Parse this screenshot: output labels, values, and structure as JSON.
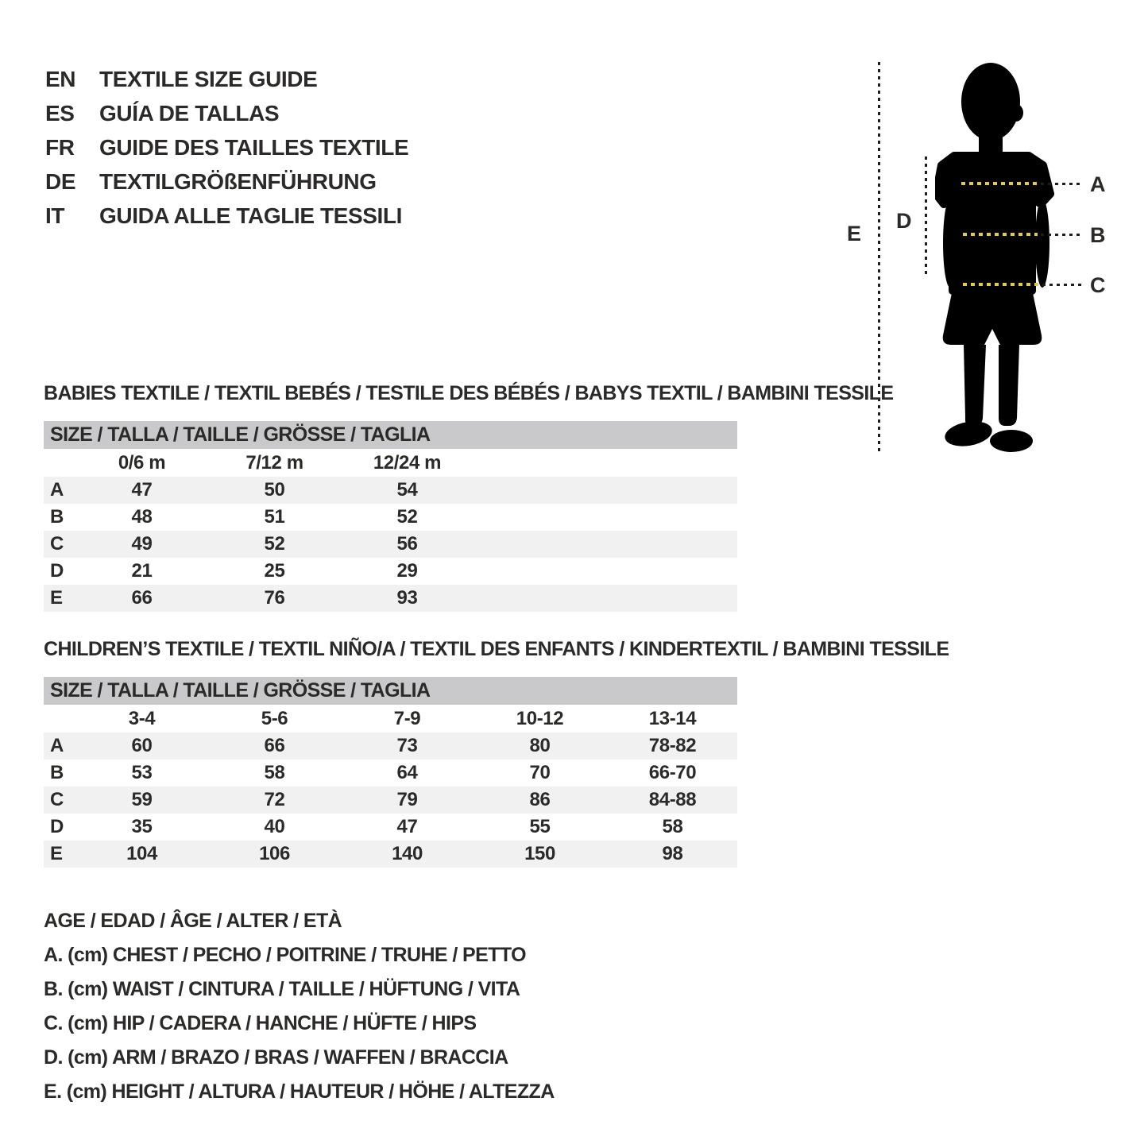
{
  "header": {
    "languages": [
      {
        "code": "EN",
        "label": "TEXTILE SIZE GUIDE"
      },
      {
        "code": "ES",
        "label": "GUÍA DE TALLAS"
      },
      {
        "code": "FR",
        "label": "GUIDE DES TAILLES TEXTILE"
      },
      {
        "code": "DE",
        "label": "TEXTILGRÖßENFÜHRUNG"
      },
      {
        "code": "IT",
        "label": "GUIDA ALLE TAGLIE TESSILI"
      }
    ]
  },
  "figure": {
    "labels": {
      "a": "A",
      "b": "B",
      "c": "C",
      "d": "D",
      "e": "E"
    }
  },
  "babies": {
    "title": "BABIES TEXTILE / TEXTIL BEBÉS / TESTILE DES BÉBÉS / BABYS TEXTIL / BAMBINI TESSILE",
    "size_header": "SIZE / TALLA / TAILLE / GRÖSSE / TAGLIA",
    "columns": [
      "0/6 m",
      "7/12 m",
      "12/24 m"
    ],
    "rows": [
      {
        "label": "A",
        "values": [
          "47",
          "50",
          "54"
        ]
      },
      {
        "label": "B",
        "values": [
          "48",
          "51",
          "52"
        ]
      },
      {
        "label": "C",
        "values": [
          "49",
          "52",
          "56"
        ]
      },
      {
        "label": "D",
        "values": [
          "21",
          "25",
          "29"
        ]
      },
      {
        "label": "E",
        "values": [
          "66",
          "76",
          "93"
        ]
      }
    ]
  },
  "children": {
    "title": "CHILDREN’S TEXTILE / TEXTIL NIÑO/A / TEXTIL DES ENFANTS / KINDERTEXTIL / BAMBINI TESSILE",
    "size_header": "SIZE / TALLA / TAILLE / GRÖSSE / TAGLIA",
    "columns": [
      "3-4",
      "5-6",
      "7-9",
      "10-12",
      "13-14"
    ],
    "rows": [
      {
        "label": "A",
        "values": [
          "60",
          "66",
          "73",
          "80",
          "78-82"
        ]
      },
      {
        "label": "B",
        "values": [
          "53",
          "58",
          "64",
          "70",
          "66-70"
        ]
      },
      {
        "label": "C",
        "values": [
          "59",
          "72",
          "79",
          "86",
          "84-88"
        ]
      },
      {
        "label": "D",
        "values": [
          "35",
          "40",
          "47",
          "55",
          "58"
        ]
      },
      {
        "label": "E",
        "values": [
          "104",
          "106",
          "140",
          "150",
          "98"
        ]
      }
    ]
  },
  "legend": {
    "lines": [
      "AGE / EDAD / ÂGE / ALTER / ETÀ",
      "A. (cm) CHEST / PECHO / POITRINE / TRUHE / PETTO",
      "B. (cm) WAIST / CINTURA / TAILLE / HÜFTUNG / VITA",
      "C. (cm) HIP / CADERA / HANCHE / HÜFTE / HIPS",
      "D. (cm) ARM / BRAZO / BRAS / WAFFEN / BRACCIA",
      "E. (cm) HEIGHT / ALTURA / HAUTEUR / HÖHE / ALTEZZA"
    ]
  },
  "colors": {
    "text": "#2b2a28",
    "bar_gray": "#c9c9cb",
    "stripe_gray": "#f1f1f2",
    "accent_yellow": "#e2c94f",
    "line_black": "#1d1d1b"
  }
}
